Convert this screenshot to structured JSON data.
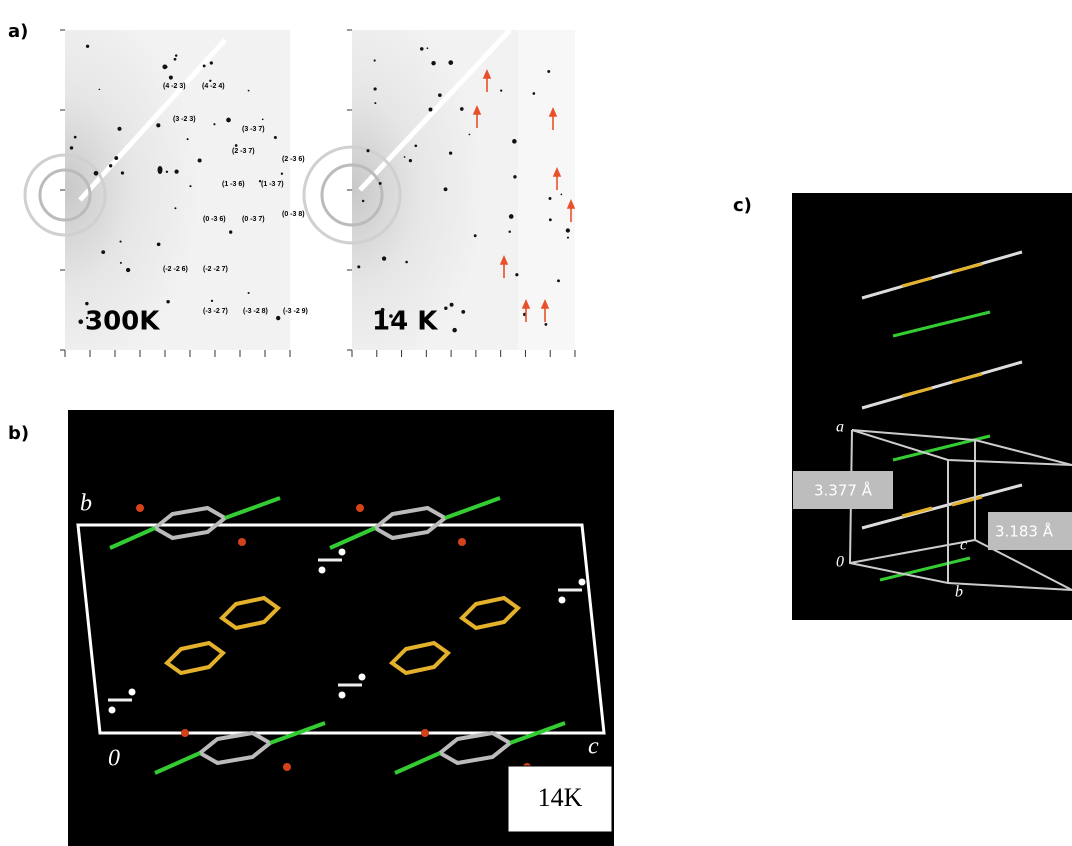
{
  "panels": {
    "a": {
      "label": "a)",
      "left": {
        "temperature": "300K",
        "reflections": [
          "(4 -2 3)",
          "(4 -2 4)",
          "(3 -2 3)",
          "(3 -3 7)",
          "(2 -3 7)",
          "(2 -3 6)",
          "(1 -3 6)",
          "(1 -3 7)",
          "(0 -3 6)",
          "(0 -3 7)",
          "(0 -3 8)",
          "(-2 -2 6)",
          "(-2 -2 7)",
          "(-3 -2 7)",
          "(-3 -2 8)",
          "(-3 -2 9)"
        ]
      },
      "right": {
        "temperature": "14 K"
      }
    },
    "b": {
      "label": "b)",
      "axes": {
        "b": "b",
        "origin": "0",
        "c": "c"
      },
      "temperature": "14K"
    },
    "c": {
      "label": "c)",
      "axes": {
        "a": "a",
        "origin": "0",
        "c": "c",
        "b": "b"
      },
      "distances": [
        "3.377 Å",
        "3.183 Å"
      ]
    }
  }
}
